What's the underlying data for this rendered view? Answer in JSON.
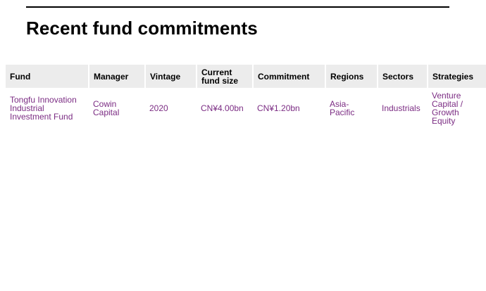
{
  "page": {
    "title": "Recent fund commitments"
  },
  "table": {
    "headers": {
      "fund": "Fund",
      "manager": "Manager",
      "vintage": "Vintage",
      "current_fund_size": "Current fund size",
      "commitment": "Commitment",
      "regions": "Regions",
      "sectors": "Sectors",
      "strategies": "Strategies"
    },
    "rows": [
      {
        "fund": "Tongfu Innovation Industrial Investment Fund",
        "manager": "Cowin Capital",
        "vintage": "2020",
        "current_fund_size": "CN¥4.00bn",
        "commitment": "CN¥1.20bn",
        "regions": "Asia-Pacific",
        "sectors": "Industrials",
        "strategies": "Venture Capital / Growth Equity"
      }
    ]
  },
  "colors": {
    "header_bg": "#ececec",
    "link_text": "#7b2c83",
    "rule": "#000000"
  }
}
